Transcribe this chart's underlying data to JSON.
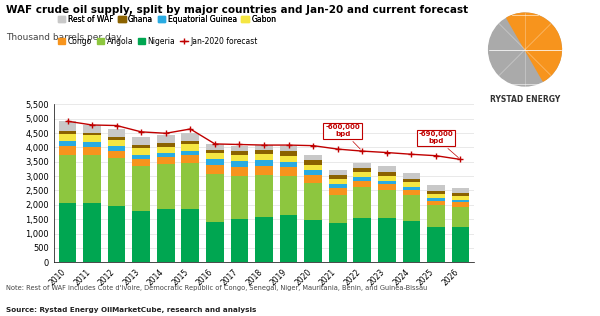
{
  "title": "WAF crude oil supply, split by major countries and Jan-20 and current forecast",
  "subtitle": "Thousand barrels per day",
  "years": [
    2010,
    2011,
    2012,
    2013,
    2014,
    2015,
    2016,
    2017,
    2018,
    2019,
    2020,
    2021,
    2022,
    2023,
    2024,
    2025,
    2026
  ],
  "nigeria": [
    2050,
    2050,
    1960,
    1800,
    1850,
    1870,
    1410,
    1510,
    1560,
    1650,
    1480,
    1350,
    1530,
    1530,
    1440,
    1230,
    1230
  ],
  "angola": [
    1700,
    1700,
    1660,
    1560,
    1560,
    1600,
    1650,
    1500,
    1480,
    1360,
    1270,
    990,
    1100,
    1000,
    900,
    760,
    710
  ],
  "congo": [
    300,
    280,
    270,
    230,
    250,
    270,
    330,
    320,
    320,
    310,
    280,
    240,
    210,
    200,
    180,
    160,
    150
  ],
  "equatorial_guinea": [
    170,
    160,
    150,
    160,
    150,
    150,
    190,
    190,
    185,
    180,
    170,
    140,
    120,
    110,
    100,
    80,
    75
  ],
  "gabon": [
    240,
    230,
    220,
    220,
    220,
    210,
    210,
    210,
    210,
    210,
    200,
    190,
    185,
    180,
    175,
    160,
    150
  ],
  "ghana": [
    100,
    80,
    100,
    110,
    120,
    120,
    110,
    130,
    140,
    150,
    150,
    130,
    120,
    110,
    100,
    90,
    85
  ],
  "rest_of_waf": [
    350,
    280,
    280,
    290,
    290,
    270,
    230,
    200,
    180,
    180,
    180,
    180,
    195,
    220,
    200,
    200,
    195
  ],
  "jan2020_forecast": [
    4910,
    4780,
    4760,
    4540,
    4490,
    4640,
    4120,
    4100,
    4080,
    4080,
    4060,
    3940,
    3870,
    3820,
    3760,
    3710,
    3580
  ],
  "annotation1_year_idx": 12,
  "annotation1_text": "-600,000\nbpd",
  "annotation2_year_idx": 16,
  "annotation2_text": "-690,000\nbpd",
  "colors": {
    "nigeria": "#00a651",
    "angola": "#8dc63f",
    "congo": "#f7941d",
    "equatorial_guinea": "#29abe2",
    "gabon": "#f5e642",
    "ghana": "#8B6200",
    "rest_of_waf": "#c8c8c8",
    "jan2020": "#c00000"
  },
  "ylim": [
    0,
    5500
  ],
  "yticks": [
    0,
    500,
    1000,
    1500,
    2000,
    2500,
    3000,
    3500,
    4000,
    4500,
    5000,
    5500
  ],
  "note": "Note: Rest of WAF includes Cote d'Ivoire, Democratic Republic of Congo, Senegal, Niger, Mauritania, Benin, and Guinea-Bissau",
  "source": "Source: Rystad Energy OilMarketCube, research and analysis"
}
